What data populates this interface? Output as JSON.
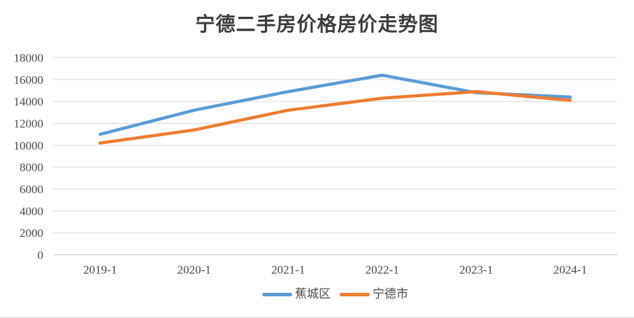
{
  "title": "宁德二手房价格房价走势图",
  "chart_data": {
    "type": "line",
    "title": "宁德二手房价格房价走势图",
    "categories": [
      "2019-1",
      "2020-1",
      "2021-1",
      "2022-1",
      "2023-1",
      "2024-1"
    ],
    "series": [
      {
        "name": "蕉城区",
        "color": "#5B9BD5",
        "values": [
          11000,
          13200,
          14900,
          16400,
          14800,
          14400
        ]
      },
      {
        "name": "宁德市",
        "color": "#ED7D31",
        "values": [
          10200,
          11400,
          13200,
          14300,
          14900,
          14100
        ]
      }
    ],
    "ylim": [
      0,
      18000
    ],
    "ytick_step": 2000,
    "ytick_labels": [
      "0",
      "2000",
      "4000",
      "6000",
      "8000",
      "10000",
      "12000",
      "14000",
      "16000",
      "18000"
    ],
    "grid": "horizontal",
    "legend_position": "bottom",
    "gridline_color": "#D9D9D9",
    "axis_line_color": "#C6C6C6",
    "text_color": "#4A4A4A",
    "line_width": 4.5
  },
  "legend": {
    "items": [
      {
        "label": "蕉城区",
        "swatch_color": "#5B9BD5"
      },
      {
        "label": "宁德市",
        "swatch_color": "#ED7D31"
      }
    ]
  }
}
